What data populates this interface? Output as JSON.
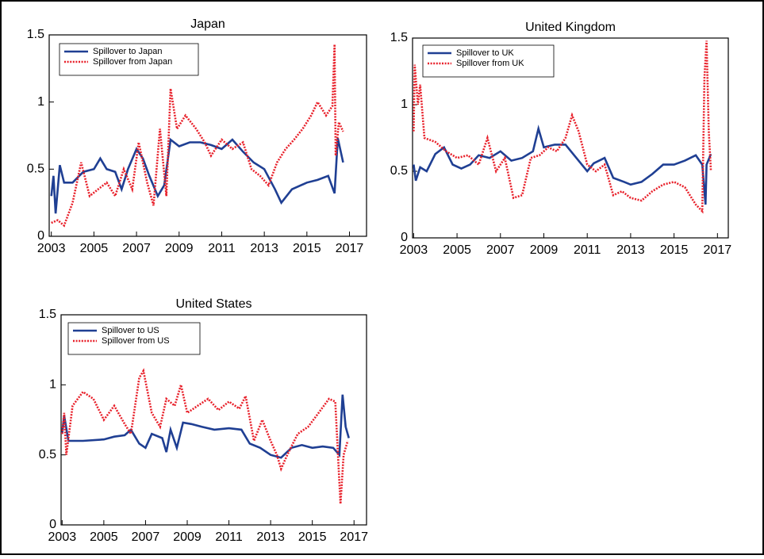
{
  "chart_data": [
    {
      "type": "line",
      "title": "Japan",
      "xlim": [
        2002.9,
        2017.8
      ],
      "ylim": [
        0,
        1.5
      ],
      "xticks": [
        2003,
        2005,
        2007,
        2009,
        2011,
        2013,
        2015,
        2017
      ],
      "yticks": [
        0,
        0.5,
        1,
        1.5
      ],
      "series": [
        {
          "name": "Spillover to Japan",
          "color": "#1f3f93",
          "style": "solid",
          "x": [
            2003,
            2003.1,
            2003.2,
            2003.4,
            2003.6,
            2004,
            2004.5,
            2005,
            2005.3,
            2005.6,
            2006,
            2006.3,
            2006.6,
            2007,
            2007.3,
            2007.6,
            2008,
            2008.3,
            2008.6,
            2009,
            2009.5,
            2010,
            2010.5,
            2011,
            2011.5,
            2012,
            2012.5,
            2013,
            2013.5,
            2013.8,
            2014.3,
            2015,
            2015.5,
            2016,
            2016.3,
            2016.45,
            2016.7
          ],
          "values": [
            0.3,
            0.45,
            0.17,
            0.53,
            0.4,
            0.4,
            0.48,
            0.5,
            0.58,
            0.5,
            0.48,
            0.35,
            0.5,
            0.65,
            0.58,
            0.45,
            0.3,
            0.38,
            0.72,
            0.67,
            0.7,
            0.7,
            0.68,
            0.65,
            0.72,
            0.63,
            0.55,
            0.5,
            0.35,
            0.25,
            0.35,
            0.4,
            0.42,
            0.45,
            0.32,
            0.73,
            0.55
          ]
        },
        {
          "name": "Spillover from Japan",
          "color": "#e8202a",
          "style": "dotted",
          "x": [
            2003,
            2003.3,
            2003.6,
            2004,
            2004.4,
            2004.8,
            2005.2,
            2005.6,
            2006,
            2006.4,
            2006.8,
            2007.1,
            2007.5,
            2007.8,
            2008.1,
            2008.4,
            2008.6,
            2008.9,
            2009.3,
            2009.8,
            2010.2,
            2010.5,
            2011,
            2011.5,
            2012,
            2012.4,
            2012.8,
            2013.2,
            2013.6,
            2014,
            2014.4,
            2014.8,
            2015.2,
            2015.5,
            2015.9,
            2016.2,
            2016.3,
            2016.35,
            2016.5,
            2016.7
          ],
          "values": [
            0.1,
            0.12,
            0.08,
            0.25,
            0.55,
            0.3,
            0.35,
            0.4,
            0.3,
            0.5,
            0.35,
            0.7,
            0.4,
            0.23,
            0.8,
            0.3,
            1.1,
            0.8,
            0.9,
            0.8,
            0.7,
            0.6,
            0.72,
            0.65,
            0.7,
            0.5,
            0.45,
            0.38,
            0.55,
            0.65,
            0.72,
            0.8,
            0.9,
            1.0,
            0.9,
            0.97,
            1.43,
            0.6,
            0.85,
            0.78
          ]
        }
      ]
    },
    {
      "type": "line",
      "title": "United Kingdom",
      "xlim": [
        2002.95,
        2017.5
      ],
      "ylim": [
        0,
        1.5
      ],
      "xticks": [
        2003,
        2005,
        2007,
        2009,
        2011,
        2013,
        2015,
        2017
      ],
      "yticks": [
        0,
        0.5,
        1,
        1.5
      ],
      "series": [
        {
          "name": "Spillover to UK",
          "color": "#1f3f93",
          "style": "solid",
          "x": [
            2003,
            2003.1,
            2003.3,
            2003.6,
            2004,
            2004.4,
            2004.8,
            2005.2,
            2005.6,
            2006,
            2006.5,
            2007,
            2007.5,
            2008,
            2008.5,
            2008.75,
            2009,
            2009.5,
            2010,
            2010.5,
            2011,
            2011.3,
            2011.8,
            2012.2,
            2012.7,
            2013,
            2013.5,
            2014,
            2014.5,
            2015,
            2015.5,
            2016,
            2016.3,
            2016.45,
            2016.5,
            2016.7
          ],
          "values": [
            0.55,
            0.43,
            0.53,
            0.5,
            0.63,
            0.68,
            0.55,
            0.52,
            0.55,
            0.62,
            0.6,
            0.65,
            0.58,
            0.6,
            0.65,
            0.82,
            0.68,
            0.7,
            0.7,
            0.6,
            0.5,
            0.56,
            0.6,
            0.45,
            0.42,
            0.4,
            0.42,
            0.48,
            0.55,
            0.55,
            0.58,
            0.62,
            0.55,
            0.25,
            0.55,
            0.63
          ]
        },
        {
          "name": "Spillover from UK",
          "color": "#e8202a",
          "style": "dotted",
          "x": [
            2003,
            2003.05,
            2003.2,
            2003.3,
            2003.5,
            2004,
            2004.5,
            2005,
            2005.5,
            2006,
            2006.4,
            2006.8,
            2007.2,
            2007.6,
            2008,
            2008.4,
            2008.8,
            2009.2,
            2009.6,
            2010,
            2010.3,
            2010.6,
            2011,
            2011.4,
            2011.8,
            2012.2,
            2012.6,
            2013,
            2013.5,
            2014,
            2014.5,
            2015,
            2015.5,
            2016,
            2016.3,
            2016.4,
            2016.5,
            2016.6,
            2016.7
          ],
          "values": [
            0.8,
            1.3,
            1.0,
            1.15,
            0.75,
            0.72,
            0.65,
            0.6,
            0.62,
            0.55,
            0.75,
            0.5,
            0.6,
            0.3,
            0.32,
            0.6,
            0.62,
            0.68,
            0.65,
            0.75,
            0.92,
            0.8,
            0.55,
            0.5,
            0.55,
            0.32,
            0.35,
            0.3,
            0.28,
            0.35,
            0.4,
            0.42,
            0.38,
            0.25,
            0.2,
            1.2,
            1.48,
            0.8,
            0.5
          ]
        }
      ]
    },
    {
      "type": "line",
      "title": "United States",
      "xlim": [
        2002.95,
        2017.6
      ],
      "ylim": [
        0,
        1.5
      ],
      "xticks": [
        2003,
        2005,
        2007,
        2009,
        2011,
        2013,
        2015,
        2017
      ],
      "yticks": [
        0,
        0.5,
        1,
        1.5
      ],
      "series": [
        {
          "name": "Spillover to US",
          "color": "#1f3f93",
          "style": "solid",
          "x": [
            2003,
            2003.1,
            2003.3,
            2004,
            2005,
            2005.5,
            2006,
            2006.3,
            2006.7,
            2007,
            2007.3,
            2007.8,
            2008,
            2008.2,
            2008.5,
            2008.8,
            2009.2,
            2009.7,
            2010.3,
            2011,
            2011.6,
            2012,
            2012.5,
            2013,
            2013.5,
            2014,
            2014.5,
            2015,
            2015.5,
            2016,
            2016.3,
            2016.45,
            2016.6,
            2016.75
          ],
          "values": [
            0.65,
            0.78,
            0.6,
            0.6,
            0.61,
            0.63,
            0.64,
            0.68,
            0.58,
            0.55,
            0.65,
            0.62,
            0.52,
            0.68,
            0.55,
            0.73,
            0.72,
            0.7,
            0.68,
            0.69,
            0.68,
            0.58,
            0.55,
            0.5,
            0.48,
            0.55,
            0.57,
            0.55,
            0.56,
            0.55,
            0.5,
            0.93,
            0.7,
            0.62
          ]
        },
        {
          "name": "Spillover from US",
          "color": "#e8202a",
          "style": "dotted",
          "x": [
            2003,
            2003.1,
            2003.2,
            2003.5,
            2004,
            2004.5,
            2005,
            2005.5,
            2006,
            2006.3,
            2006.7,
            2006.9,
            2007.3,
            2007.7,
            2008,
            2008.4,
            2008.7,
            2009,
            2009.5,
            2010,
            2010.5,
            2011,
            2011.5,
            2011.8,
            2012.2,
            2012.6,
            2013,
            2013.3,
            2013.5,
            2013.8,
            2014.3,
            2014.8,
            2015.3,
            2015.8,
            2016.1,
            2016.3,
            2016.35,
            2016.5,
            2016.7
          ],
          "values": [
            0.65,
            0.8,
            0.5,
            0.85,
            0.95,
            0.9,
            0.75,
            0.85,
            0.72,
            0.65,
            1.05,
            1.1,
            0.8,
            0.7,
            0.9,
            0.85,
            1.0,
            0.8,
            0.85,
            0.9,
            0.82,
            0.88,
            0.83,
            0.92,
            0.6,
            0.75,
            0.6,
            0.5,
            0.4,
            0.5,
            0.65,
            0.7,
            0.8,
            0.9,
            0.88,
            0.3,
            0.15,
            0.5,
            0.6
          ]
        }
      ]
    }
  ]
}
